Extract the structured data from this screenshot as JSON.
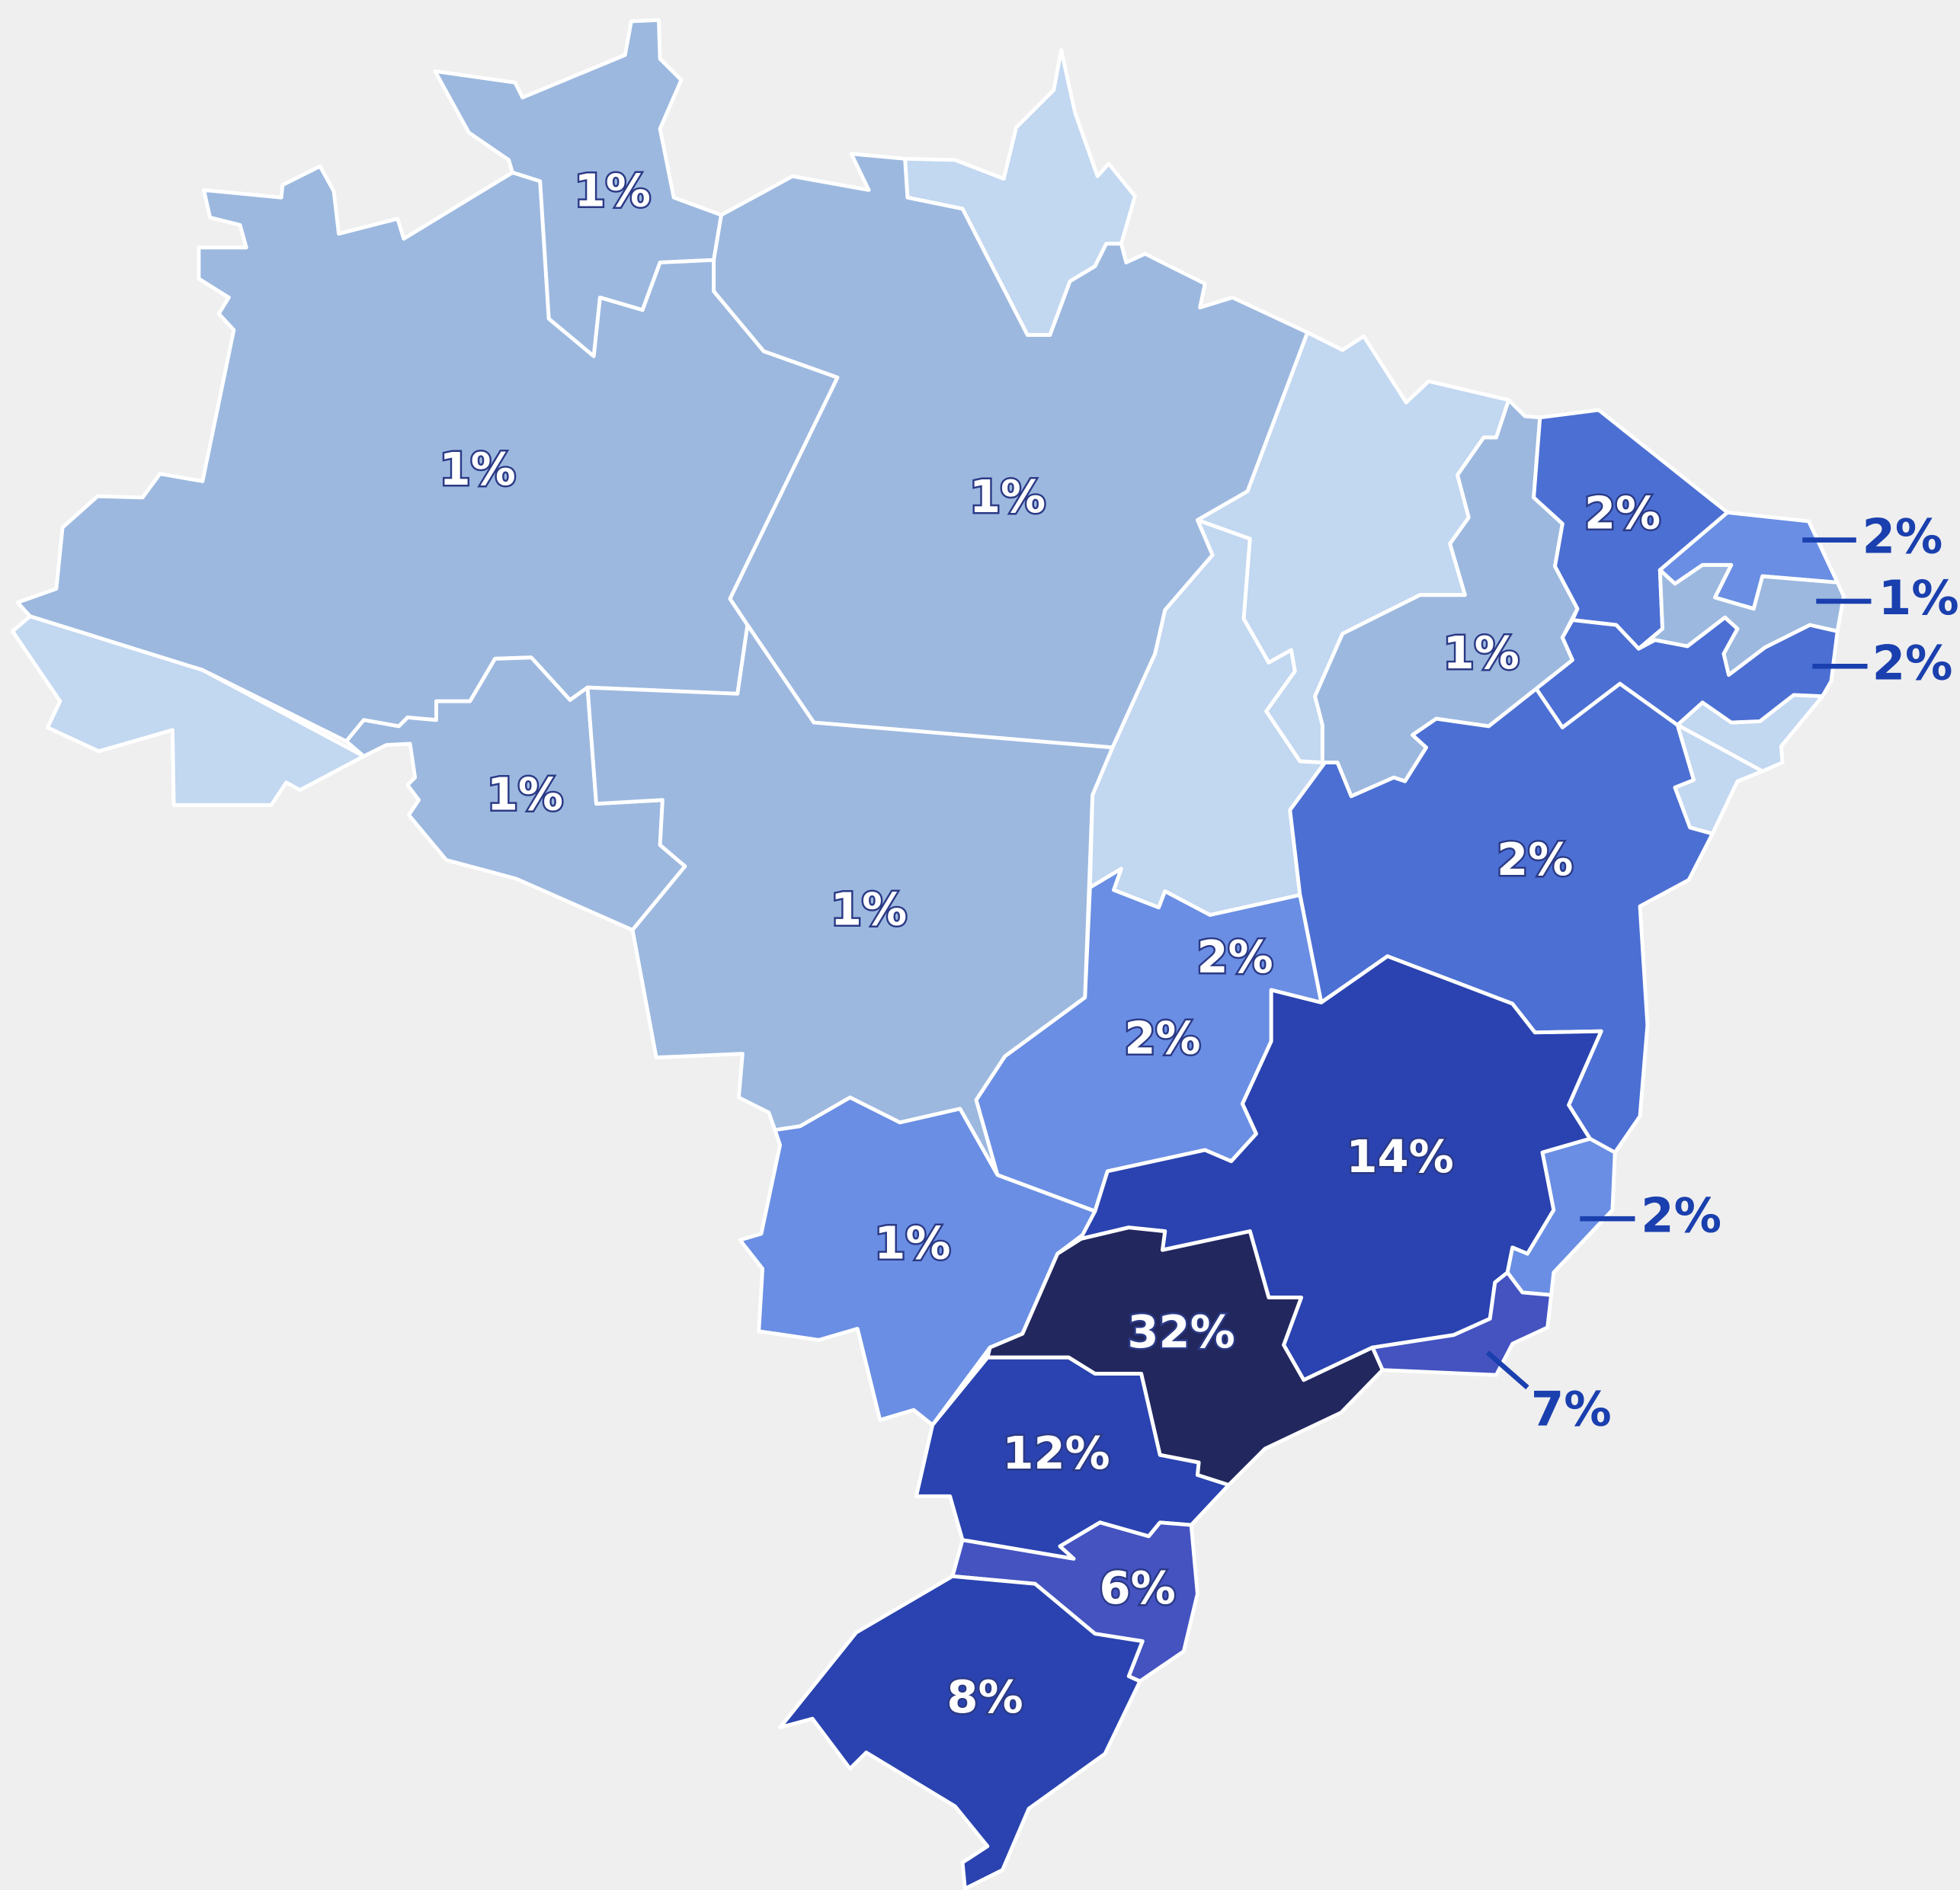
{
  "regions": [
    {
      "label": "1%",
      "value": 1,
      "color": "#9cb8df"
    },
    {
      "label": "1%",
      "value": 1,
      "color": "#9cb8df"
    },
    {
      "label": "1%",
      "value": 1,
      "color": "#9cb8df"
    },
    {
      "label": "1%",
      "value": 1,
      "color": "#9cb8df"
    },
    {
      "label": "1%",
      "value": 1,
      "color": "#9cb8df"
    },
    {
      "label": "1%",
      "value": 1,
      "color": "#9cb8df"
    },
    {
      "label": "2%",
      "value": 2,
      "color": "#4c6fd3"
    },
    {
      "label": "2%",
      "value": 2,
      "color": "#6a8ee3"
    },
    {
      "label": "1%",
      "value": 1,
      "color": "#9cb8df"
    },
    {
      "label": "2%",
      "value": 2,
      "color": "#4c6fd3"
    },
    {
      "label": "2%",
      "value": 2,
      "color": "#4c6fd3"
    },
    {
      "label": "2%",
      "value": 2,
      "color": "#6a8ee3"
    },
    {
      "label": "2%",
      "value": 2,
      "color": "#6a8ee3"
    },
    {
      "label": "14%",
      "value": 14,
      "color": "#2a43b0"
    },
    {
      "label": "2%",
      "value": 2,
      "color": "#6a8ee3"
    },
    {
      "label": "7%",
      "value": 7,
      "color": "#4453c0"
    },
    {
      "label": "1%",
      "value": 1,
      "color": "#6a8ee3"
    },
    {
      "label": "32%",
      "value": 32,
      "color": "#22275e"
    },
    {
      "label": "12%",
      "value": 12,
      "color": "#2a43b0"
    },
    {
      "label": "6%",
      "value": 6,
      "color": "#4453c0"
    },
    {
      "label": "8%",
      "value": 8,
      "color": "#2a43b0"
    }
  ]
}
